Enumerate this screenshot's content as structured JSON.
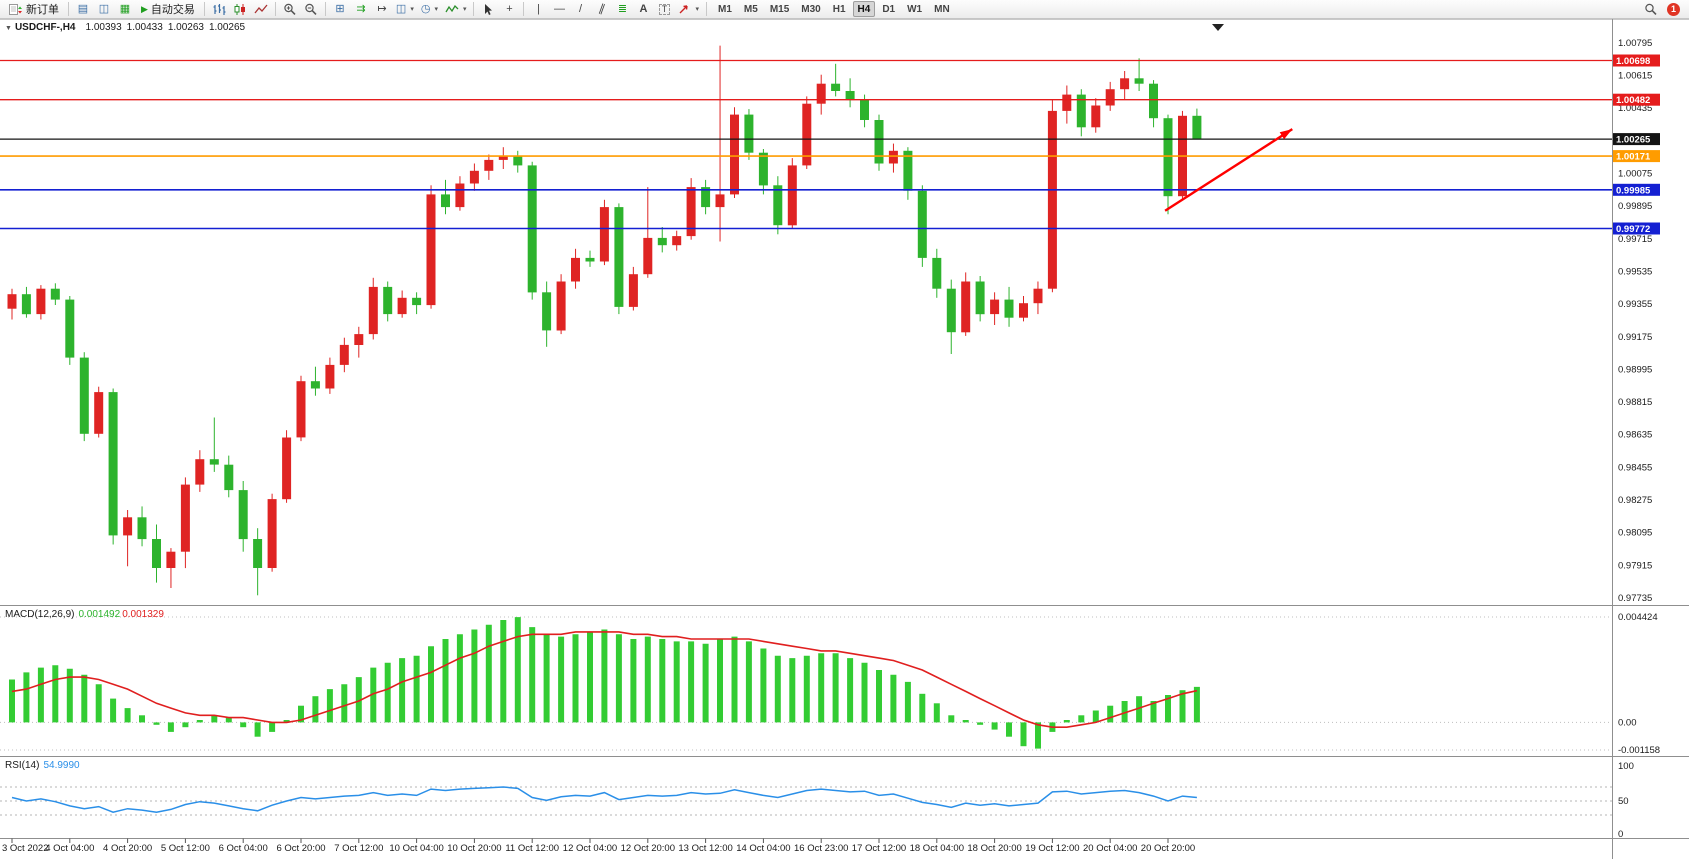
{
  "toolbar": {
    "new_order_label": "新订单",
    "auto_trading_label": "自动交易",
    "timeframes": [
      "M1",
      "M5",
      "M15",
      "M30",
      "H1",
      "H4",
      "D1",
      "W1",
      "MN"
    ],
    "active_timeframe": "H4",
    "notification_count": "1"
  },
  "icons": {
    "market_watch": "▤",
    "data_window": "◫",
    "terminal": "▦",
    "auto_trading_play": "▶",
    "tile_windows": "⊞",
    "auto_scroll": "⇉",
    "chart_shift": "↦",
    "new_chart": "◫",
    "clock": "◷",
    "dropdown": "▾",
    "crosshair": "+",
    "vertical_line": "|",
    "horizontal_line": "—",
    "trendline": "/",
    "channel": "∥",
    "fibonacci": "≣",
    "text": "A",
    "text_label": "T",
    "expander": "▼"
  },
  "chart": {
    "title": "USDCHF-,H4",
    "ohlc": {
      "open": "1.00393",
      "high": "1.00433",
      "low": "1.00263",
      "close": "1.00265"
    },
    "price_axis_ticks": [
      "1.00795",
      "1.00615",
      "1.00435",
      "1.00255",
      "1.00075",
      "0.99895",
      "0.99715",
      "0.99535",
      "0.99355",
      "0.99175",
      "0.98995",
      "0.98815",
      "0.98635",
      "0.98455",
      "0.98275",
      "0.98095",
      "0.97915",
      "0.97735"
    ],
    "colors": {
      "bull": "#df2423",
      "bear": "#2db32d",
      "macd_histogram": "#33cc33",
      "macd_signal": "#e01f1f",
      "rsi_line": "#2a8fe8",
      "background": "#ffffff",
      "axis_text": "#1a1a1a",
      "grid": "#8f8f8f",
      "level_red": "#e51c1c",
      "level_blue": "#1420d2",
      "level_orange": "#ff9c00",
      "bid_black": "#141414",
      "arrow_red": "#ff0000"
    }
  },
  "chart_data": {
    "type": "candlestick",
    "symbol": "USDCHF",
    "timeframe": "H4",
    "price_range": [
      0.97735,
      1.008
    ],
    "label_every_n_bars": 4,
    "time_labels": [
      "3 Oct 2022",
      "4 Oct 04:00",
      "4 Oct 20:00",
      "5 Oct 12:00",
      "6 Oct 04:00",
      "6 Oct 20:00",
      "7 Oct 12:00",
      "10 Oct 04:00",
      "10 Oct 20:00",
      "11 Oct 12:00",
      "12 Oct 04:00",
      "12 Oct 20:00",
      "13 Oct 12:00",
      "14 Oct 04:00",
      "16 Oct 23:00",
      "17 Oct 12:00",
      "18 Oct 04:00",
      "18 Oct 20:00",
      "19 Oct 12:00",
      "20 Oct 04:00",
      "20 Oct 20:00"
    ],
    "candles": [
      [
        0.9933,
        0.9944,
        0.9927,
        0.9941
      ],
      [
        0.9941,
        0.9945,
        0.9928,
        0.993
      ],
      [
        0.993,
        0.9946,
        0.9927,
        0.9944
      ],
      [
        0.9944,
        0.9947,
        0.9935,
        0.9938
      ],
      [
        0.9938,
        0.994,
        0.9902,
        0.9906
      ],
      [
        0.9906,
        0.9909,
        0.986,
        0.9864
      ],
      [
        0.9864,
        0.989,
        0.9862,
        0.9887
      ],
      [
        0.9887,
        0.9889,
        0.9803,
        0.9808
      ],
      [
        0.9808,
        0.9822,
        0.9791,
        0.9818
      ],
      [
        0.9818,
        0.9824,
        0.9802,
        0.9806
      ],
      [
        0.9806,
        0.9814,
        0.9782,
        0.979
      ],
      [
        0.979,
        0.9801,
        0.9779,
        0.9799
      ],
      [
        0.9799,
        0.984,
        0.979,
        0.9836
      ],
      [
        0.9836,
        0.9855,
        0.9832,
        0.985
      ],
      [
        0.985,
        0.9873,
        0.9843,
        0.9847
      ],
      [
        0.9847,
        0.9852,
        0.9829,
        0.9833
      ],
      [
        0.9833,
        0.9838,
        0.9799,
        0.9806
      ],
      [
        0.9806,
        0.9812,
        0.9775,
        0.979
      ],
      [
        0.979,
        0.9831,
        0.9788,
        0.9828
      ],
      [
        0.9828,
        0.9866,
        0.9826,
        0.9862
      ],
      [
        0.9862,
        0.9896,
        0.986,
        0.9893
      ],
      [
        0.9893,
        0.9901,
        0.9885,
        0.9889
      ],
      [
        0.9889,
        0.9906,
        0.9886,
        0.9902
      ],
      [
        0.9902,
        0.9917,
        0.9898,
        0.9913
      ],
      [
        0.9913,
        0.9923,
        0.9906,
        0.9919
      ],
      [
        0.9919,
        0.995,
        0.9916,
        0.9945
      ],
      [
        0.9945,
        0.9948,
        0.9926,
        0.993
      ],
      [
        0.993,
        0.9943,
        0.9928,
        0.9939
      ],
      [
        0.9939,
        0.9942,
        0.993,
        0.9935
      ],
      [
        0.9935,
        1.0001,
        0.9933,
        0.9996
      ],
      [
        0.9996,
        1.0004,
        0.9985,
        0.9989
      ],
      [
        0.9989,
        1.0006,
        0.9987,
        1.0002
      ],
      [
        1.0002,
        1.0013,
        0.9998,
        1.0009
      ],
      [
        1.0009,
        1.0018,
        1.0004,
        1.0015
      ],
      [
        1.0015,
        1.0022,
        1.001,
        1.0017
      ],
      [
        1.0017,
        1.002,
        1.0008,
        1.0012
      ],
      [
        1.0012,
        1.0014,
        0.9938,
        0.9942
      ],
      [
        0.9942,
        0.9948,
        0.9912,
        0.9921
      ],
      [
        0.9921,
        0.9952,
        0.9919,
        0.9948
      ],
      [
        0.9948,
        0.9966,
        0.9944,
        0.9961
      ],
      [
        0.9961,
        0.9965,
        0.9956,
        0.9959
      ],
      [
        0.9959,
        0.9993,
        0.9957,
        0.9989
      ],
      [
        0.9989,
        0.9991,
        0.993,
        0.9934
      ],
      [
        0.9934,
        0.9956,
        0.9932,
        0.9952
      ],
      [
        0.9952,
        1.0,
        0.995,
        0.9972
      ],
      [
        0.9972,
        0.9978,
        0.9964,
        0.9968
      ],
      [
        0.9968,
        0.9976,
        0.9965,
        0.9973
      ],
      [
        0.9973,
        1.0005,
        0.9971,
        1.0
      ],
      [
        1.0,
        1.0004,
        0.9985,
        0.9989
      ],
      [
        0.9989,
        1.0078,
        0.997,
        0.9996
      ],
      [
        0.9996,
        1.0044,
        0.9994,
        1.004
      ],
      [
        1.004,
        1.0043,
        1.0015,
        1.0019
      ],
      [
        1.0019,
        1.0021,
        0.9996,
        1.0001
      ],
      [
        1.0001,
        1.0006,
        0.9974,
        0.9979
      ],
      [
        0.9979,
        1.0016,
        0.9977,
        1.0012
      ],
      [
        1.0012,
        1.005,
        1.001,
        1.0046
      ],
      [
        1.0046,
        1.0062,
        1.004,
        1.0057
      ],
      [
        1.0057,
        1.0068,
        1.005,
        1.0053
      ],
      [
        1.0053,
        1.006,
        1.0044,
        1.0048
      ],
      [
        1.0048,
        1.0051,
        1.0033,
        1.0037
      ],
      [
        1.0037,
        1.004,
        1.0009,
        1.0013
      ],
      [
        1.0013,
        1.0024,
        1.0008,
        1.002
      ],
      [
        1.002,
        1.0022,
        0.9993,
        0.9998
      ],
      [
        0.9998,
        1.0001,
        0.9956,
        0.9961
      ],
      [
        0.9961,
        0.9966,
        0.9939,
        0.9944
      ],
      [
        0.9944,
        0.9949,
        0.9908,
        0.992
      ],
      [
        0.992,
        0.9953,
        0.9918,
        0.9948
      ],
      [
        0.9948,
        0.9951,
        0.9926,
        0.993
      ],
      [
        0.993,
        0.9942,
        0.9924,
        0.9938
      ],
      [
        0.9938,
        0.9945,
        0.9923,
        0.9928
      ],
      [
        0.9928,
        0.994,
        0.9926,
        0.9936
      ],
      [
        0.9936,
        0.9948,
        0.993,
        0.9944
      ],
      [
        0.9944,
        1.0048,
        0.9942,
        1.0042
      ],
      [
        1.0042,
        1.0056,
        1.0035,
        1.0051
      ],
      [
        1.0051,
        1.0054,
        1.0028,
        1.0033
      ],
      [
        1.0033,
        1.0049,
        1.003,
        1.0045
      ],
      [
        1.0045,
        1.0058,
        1.0042,
        1.0054
      ],
      [
        1.0054,
        1.0064,
        1.0048,
        1.006
      ],
      [
        1.006,
        1.0071,
        1.0053,
        1.0057
      ],
      [
        1.0057,
        1.0059,
        1.0033,
        1.0038
      ],
      [
        1.0038,
        1.004,
        0.9985,
        0.9995
      ],
      [
        0.9995,
        1.0042,
        0.9993,
        1.00393
      ],
      [
        1.00393,
        1.00433,
        1.00263,
        1.00265
      ]
    ],
    "overlays": {
      "horizontal_lines": [
        {
          "label": "1.00698",
          "price": 1.00698,
          "color": "#e51c1c",
          "width": 1.3,
          "role": "resistance-line"
        },
        {
          "label": "1.00482",
          "price": 1.00482,
          "color": "#e51c1c",
          "width": 1.3,
          "role": "resistance-line"
        },
        {
          "label": "1.00265",
          "price": 1.00265,
          "color": "#141414",
          "width": 1.2,
          "role": "bid-price-line"
        },
        {
          "label": "1.00171",
          "price": 1.00171,
          "color": "#ff9c00",
          "width": 1.6,
          "role": "pivot-line"
        },
        {
          "label": "0.99985",
          "price": 0.99985,
          "color": "#1420d2",
          "width": 1.6,
          "role": "support-line"
        },
        {
          "label": "0.99772",
          "price": 0.99772,
          "color": "#1420d2",
          "width": 1.6,
          "role": "support-line"
        }
      ],
      "trend_arrow": {
        "from_bar": 79.8,
        "from_price": 0.9987,
        "to_bar": 88.6,
        "to_price": 1.0032,
        "color": "#ff0000"
      }
    },
    "indicators": {
      "macd": {
        "label": "MACD(12,26,9)",
        "value_main": "0.001492",
        "value_signal": "0.001329",
        "axis_ticks": [
          "0.004424",
          "0.00",
          "-0.001158"
        ],
        "range": [
          -0.001158,
          0.004424
        ],
        "histogram": [
          0.0018,
          0.0021,
          0.0023,
          0.0024,
          0.00225,
          0.002,
          0.0016,
          0.001,
          0.0006,
          0.0003,
          -0.0001,
          -0.0004,
          -0.0002,
          0.0001,
          0.0003,
          0.0002,
          -0.0002,
          -0.0006,
          -0.0004,
          0.0001,
          0.0007,
          0.0011,
          0.0014,
          0.0016,
          0.0019,
          0.0023,
          0.0025,
          0.0027,
          0.0028,
          0.0032,
          0.0035,
          0.0037,
          0.0039,
          0.0041,
          0.0043,
          0.00442,
          0.004,
          0.0037,
          0.0036,
          0.0037,
          0.0038,
          0.0039,
          0.0037,
          0.0035,
          0.0036,
          0.0035,
          0.0034,
          0.0034,
          0.0033,
          0.0035,
          0.0036,
          0.0034,
          0.0031,
          0.0028,
          0.0027,
          0.0028,
          0.0029,
          0.0029,
          0.0027,
          0.0025,
          0.0022,
          0.002,
          0.0017,
          0.0012,
          0.0008,
          0.0003,
          0.0001,
          -0.0001,
          -0.0003,
          -0.0006,
          -0.001,
          -0.0011,
          -0.0004,
          0.0001,
          0.0003,
          0.0005,
          0.0007,
          0.0009,
          0.0011,
          0.0009,
          0.00115,
          0.00135,
          0.001492
        ],
        "signal": [
          0.0013,
          0.0014,
          0.0016,
          0.0018,
          0.0019,
          0.0019,
          0.0018,
          0.0016,
          0.0014,
          0.0011,
          0.0008,
          0.0006,
          0.0004,
          0.0003,
          0.0003,
          0.0002,
          0.0002,
          0.0001,
          0.0,
          0.0,
          0.0001,
          0.0003,
          0.0005,
          0.0007,
          0.0009,
          0.0012,
          0.0014,
          0.0017,
          0.0019,
          0.0021,
          0.0024,
          0.0027,
          0.0029,
          0.0032,
          0.0034,
          0.0036,
          0.0037,
          0.0037,
          0.0037,
          0.0038,
          0.0038,
          0.0038,
          0.0038,
          0.0037,
          0.0037,
          0.0036,
          0.0036,
          0.0035,
          0.0035,
          0.0035,
          0.0035,
          0.0035,
          0.0034,
          0.0033,
          0.0032,
          0.0031,
          0.003,
          0.003,
          0.0029,
          0.0028,
          0.0027,
          0.0026,
          0.0024,
          0.0022,
          0.0019,
          0.0016,
          0.0013,
          0.001,
          0.0007,
          0.0004,
          0.0001,
          -0.0001,
          -0.0002,
          -0.0002,
          -0.0001,
          0.0,
          0.0002,
          0.0004,
          0.0006,
          0.0008,
          0.001,
          0.0012,
          0.001329
        ]
      },
      "rsi": {
        "label": "RSI(14)",
        "value": "54.9990",
        "axis_ticks": [
          "100",
          "50",
          "0"
        ],
        "range": [
          0,
          100
        ],
        "levels": [
          70,
          50,
          30
        ],
        "values": [
          55,
          50,
          53,
          49,
          43,
          39,
          42,
          34,
          39,
          37,
          34,
          38,
          45,
          49,
          47,
          43,
          39,
          36,
          44,
          50,
          55,
          53,
          55,
          57,
          58,
          62,
          58,
          60,
          58,
          67,
          65,
          67,
          68,
          69,
          70,
          68,
          55,
          51,
          56,
          58,
          57,
          62,
          52,
          55,
          58,
          57,
          58,
          62,
          60,
          61,
          66,
          62,
          58,
          55,
          60,
          65,
          67,
          65,
          63,
          64,
          58,
          60,
          54,
          48,
          45,
          41,
          47,
          44,
          46,
          43,
          45,
          47,
          63,
          64,
          60,
          62,
          64,
          65,
          62,
          57,
          50,
          57,
          54.999
        ]
      }
    }
  }
}
